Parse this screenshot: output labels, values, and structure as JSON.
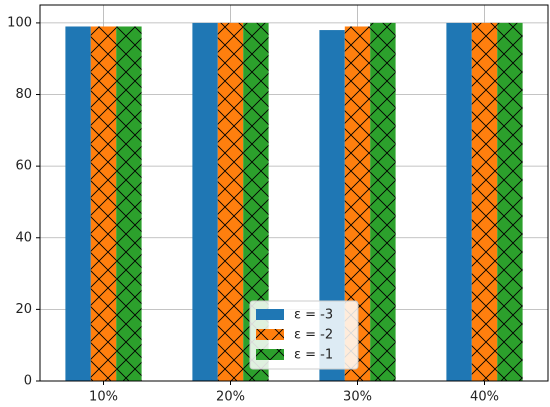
{
  "chart_data": {
    "type": "bar",
    "categories": [
      "10%",
      "20%",
      "30%",
      "40%"
    ],
    "series": [
      {
        "name": "ε = -3",
        "color": "#1f77b4",
        "hatch": false,
        "values": [
          99,
          100,
          98,
          100
        ]
      },
      {
        "name": "ε = -2",
        "color": "#ff7f0e",
        "hatch": true,
        "values": [
          99,
          100,
          99,
          100
        ]
      },
      {
        "name": "ε = -1",
        "color": "#2ca02c",
        "hatch": true,
        "values": [
          99,
          100,
          100,
          100
        ]
      }
    ],
    "ylim": [
      0,
      105
    ],
    "yticks": [
      0,
      20,
      40,
      60,
      80,
      100
    ],
    "grid": true,
    "legend": "lower center"
  }
}
